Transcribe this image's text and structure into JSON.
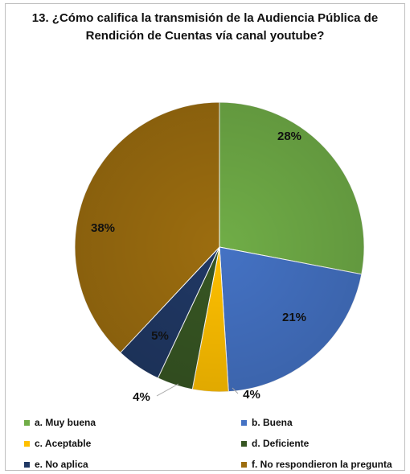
{
  "chart_data": {
    "type": "pie",
    "title": "13. ¿Cómo califica la transmisión de la Audiencia Pública de Rendición de Cuentas vía canal youtube?",
    "title_lines": [
      "13. ¿Cómo califica la transmisión de la Audiencia Pública de",
      "Rendición de Cuentas vía canal youtube?"
    ],
    "categories": [
      "a. Muy buena",
      "b. Buena",
      "c. Aceptable",
      "d. Deficiente",
      "e. No aplica",
      "f. No respondieron la pregunta"
    ],
    "values": [
      28,
      21,
      4,
      4,
      5,
      38
    ],
    "labels": [
      "28%",
      "21%",
      "4%",
      "4%",
      "5%",
      "38%"
    ],
    "colors": [
      "#70ad47",
      "#4472c4",
      "#ffc000",
      "#375623",
      "#203864",
      "#9c6d0f"
    ],
    "legend_position": "bottom"
  }
}
